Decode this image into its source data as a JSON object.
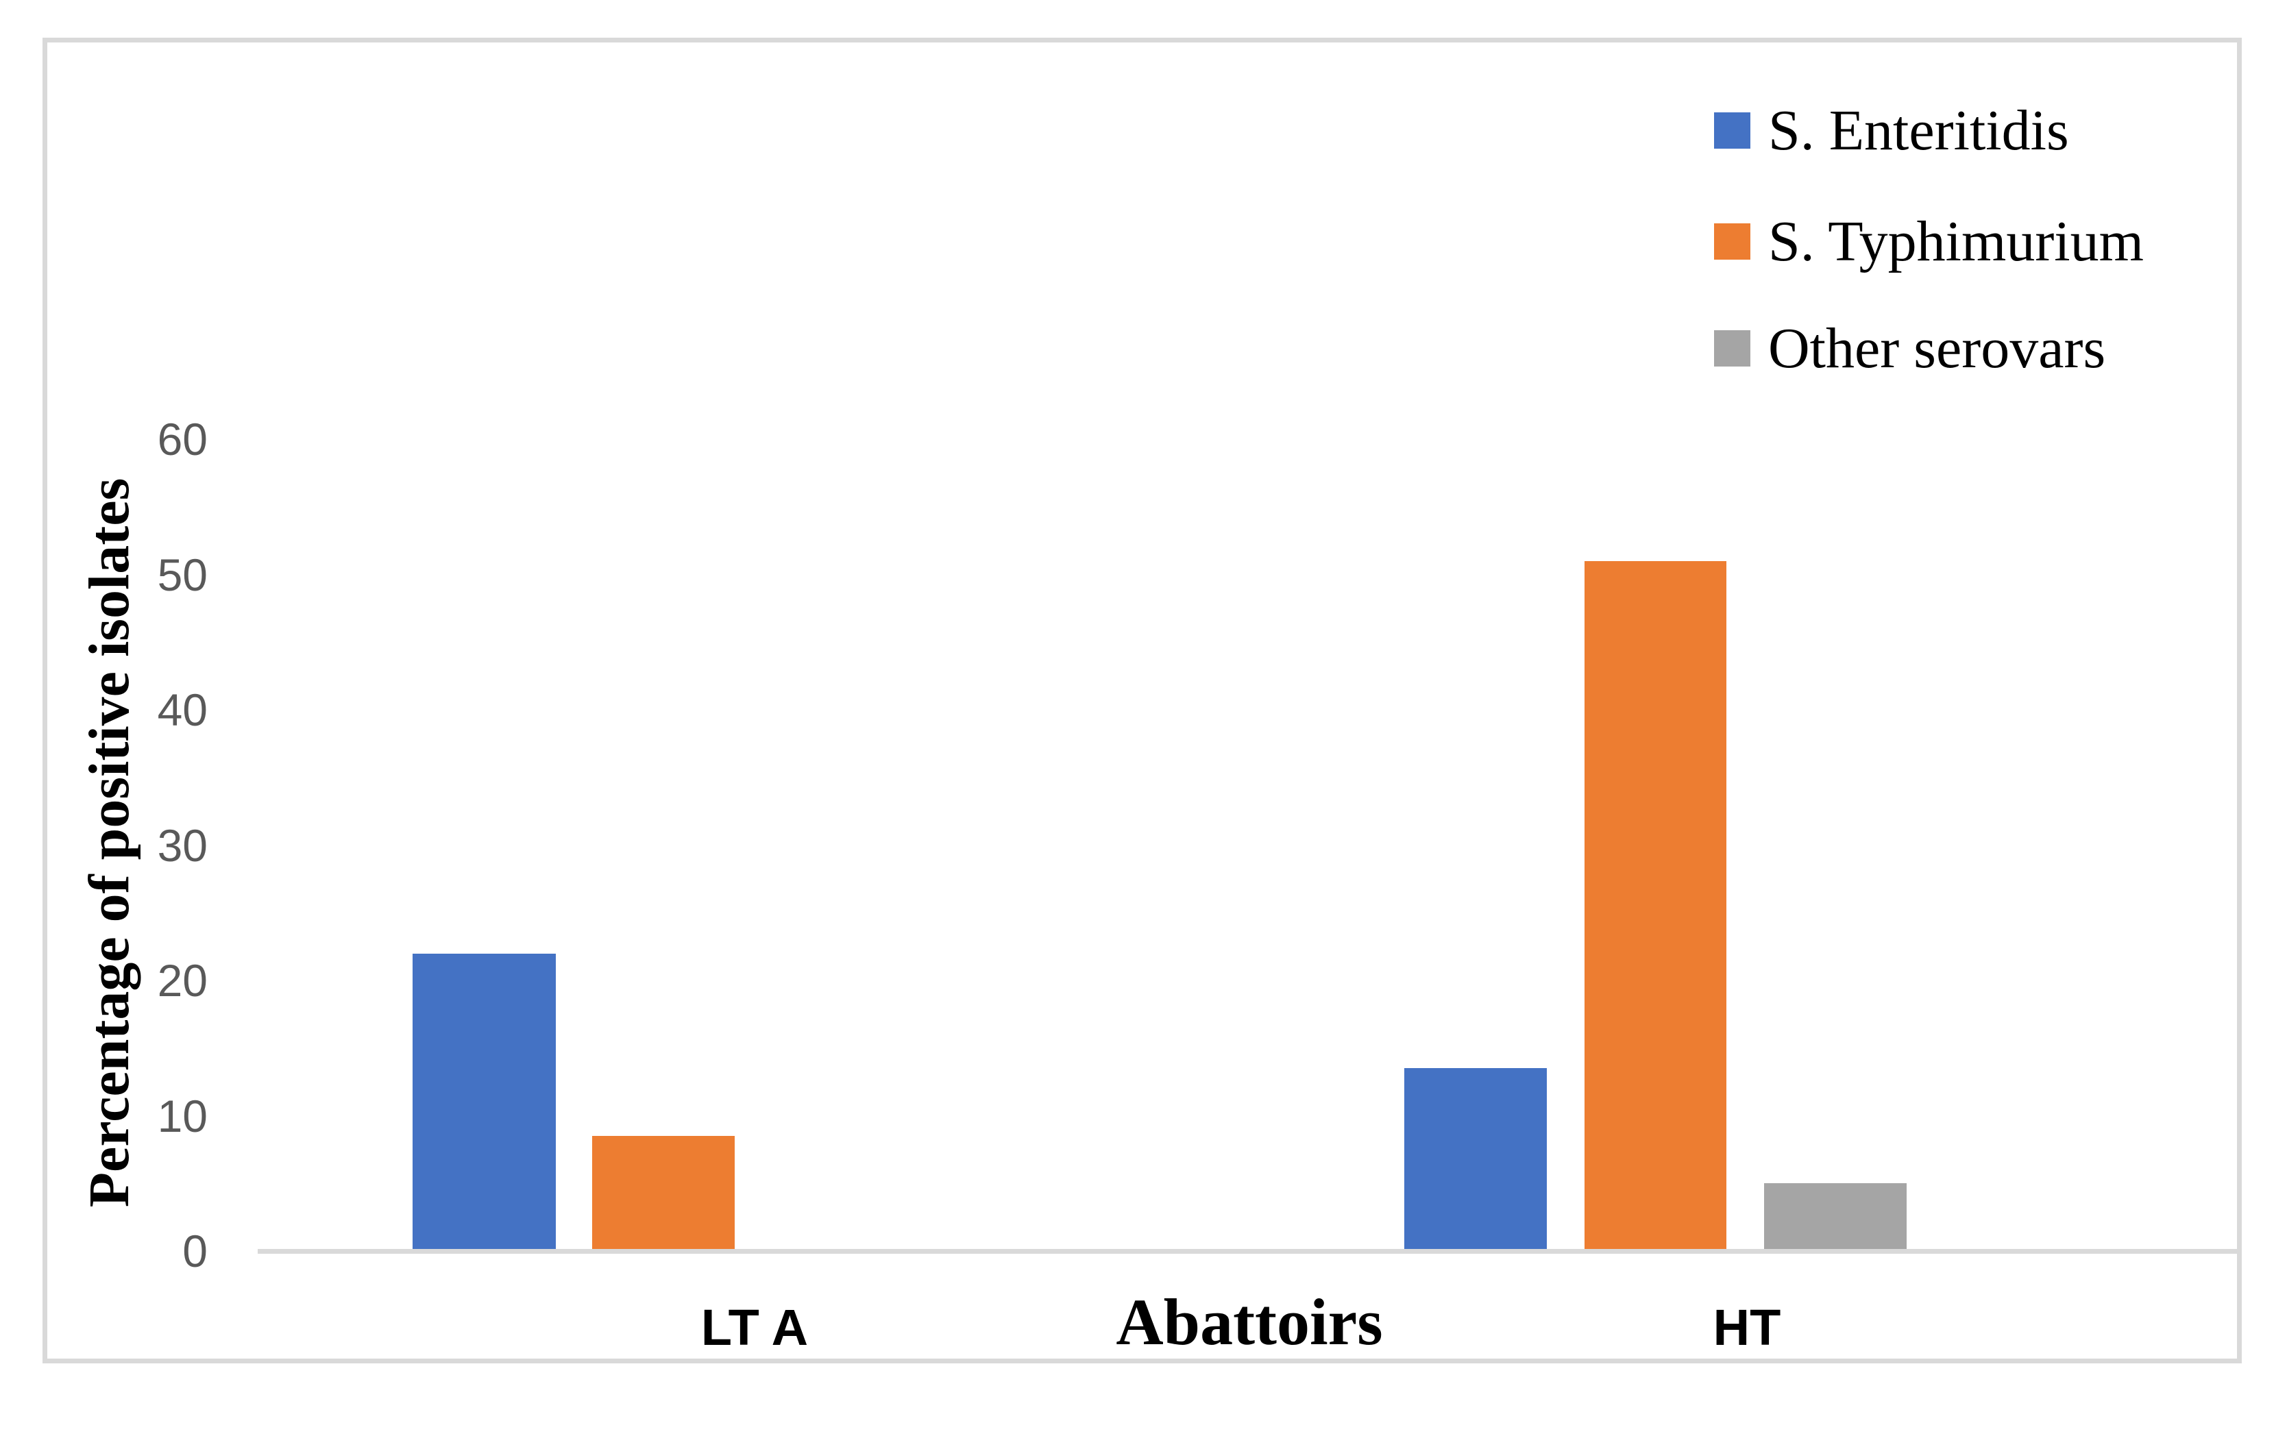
{
  "chart_data": {
    "type": "bar",
    "title": "",
    "xlabel": "Abattoirs",
    "ylabel": "Percentage of positive isolates",
    "categories": [
      "LT A",
      "HT"
    ],
    "series": [
      {
        "name": "S. Enteritidis",
        "color": "#4472C4",
        "values": [
          22,
          13.5
        ]
      },
      {
        "name": "S. Typhimurium",
        "color": "#ED7D31",
        "values": [
          8.5,
          51
        ]
      },
      {
        "name": "Other serovars",
        "color": "#A5A5A5",
        "values": [
          0,
          5
        ]
      }
    ],
    "ylim": [
      0,
      60
    ],
    "yticks": [
      60,
      50,
      40,
      30,
      20,
      10,
      0
    ],
    "grid": false,
    "legend_position": "top-right",
    "axis_color": "#D9D9D9",
    "tick_label_color": "#595959"
  }
}
